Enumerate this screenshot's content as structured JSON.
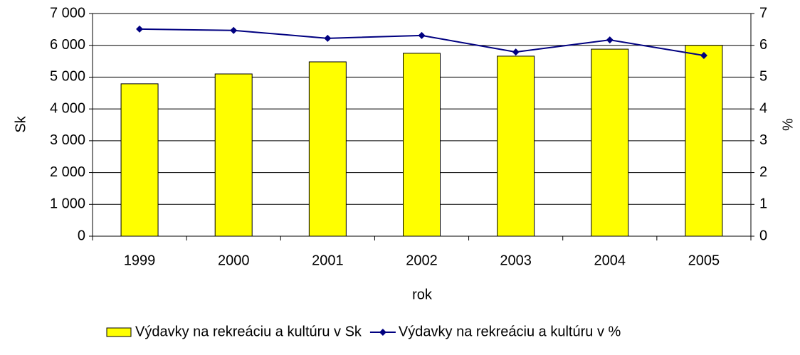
{
  "chart_data": {
    "type": "bar",
    "categories": [
      "1999",
      "2000",
      "2001",
      "2002",
      "2003",
      "2004",
      "2005"
    ],
    "series": [
      {
        "name": "Výdavky na rekreáciu a kultúru v Sk",
        "color": "#ffff00",
        "type": "bar",
        "values": [
          4790,
          5100,
          5480,
          5750,
          5660,
          5880,
          6000
        ]
      },
      {
        "name": "Výdavky na rekreáciu a kultúru v %",
        "color": "#000080",
        "type": "line",
        "axis": "y2",
        "values": [
          6.51,
          6.47,
          6.22,
          6.31,
          5.79,
          6.17,
          5.68
        ]
      }
    ],
    "y_label": "Sk",
    "y2_label": "%",
    "x_label": "rok",
    "ylim": [
      0,
      7000
    ],
    "yticks": [
      0,
      {
        "value": 1000,
        "label": "1 000"
      },
      {
        "value": 2000,
        "label": "2 000"
      },
      {
        "value": 3000,
        "label": "3 000"
      },
      {
        "value": 4000,
        "label": "4 000"
      },
      {
        "value": 5000,
        "label": "5 000"
      },
      {
        "value": 6000,
        "label": "6 000"
      },
      {
        "value": 7000,
        "label": "7 000"
      }
    ],
    "y2lim": [
      0,
      7
    ],
    "y2ticks": [
      0,
      1,
      2,
      3,
      4,
      5,
      6,
      7
    ],
    "grid": true,
    "legend": "bottom"
  }
}
